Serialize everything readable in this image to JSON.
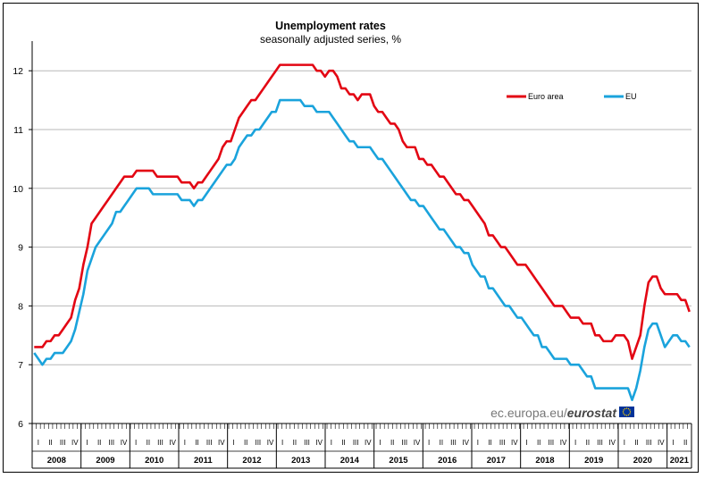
{
  "chart_data": {
    "type": "line",
    "title": "Unemployment rates",
    "subtitle": "seasonally adjusted series, %",
    "ylim": [
      6,
      12.5
    ],
    "yticks": [
      6,
      7,
      8,
      9,
      10,
      11,
      12
    ],
    "grid": true,
    "legend_position": "top-right",
    "quarter_labels": [
      "I",
      "II",
      "III",
      "IV"
    ],
    "years": [
      "2008",
      "2009",
      "2010",
      "2011",
      "2012",
      "2013",
      "2014",
      "2015",
      "2016",
      "2017",
      "2018",
      "2019",
      "2020",
      "2021"
    ],
    "x_start": "2008-01",
    "x_end": "2021-06",
    "series": [
      {
        "name": "Euro area",
        "color": "#e30613",
        "values": [
          7.3,
          7.3,
          7.3,
          7.4,
          7.4,
          7.5,
          7.5,
          7.6,
          7.7,
          7.8,
          8.1,
          8.3,
          8.7,
          9.0,
          9.4,
          9.5,
          9.6,
          9.7,
          9.8,
          9.9,
          10.0,
          10.1,
          10.2,
          10.2,
          10.2,
          10.3,
          10.3,
          10.3,
          10.3,
          10.3,
          10.2,
          10.2,
          10.2,
          10.2,
          10.2,
          10.2,
          10.1,
          10.1,
          10.1,
          10.0,
          10.1,
          10.1,
          10.2,
          10.3,
          10.4,
          10.5,
          10.7,
          10.8,
          10.8,
          11.0,
          11.2,
          11.3,
          11.4,
          11.5,
          11.5,
          11.6,
          11.7,
          11.8,
          11.9,
          12.0,
          12.1,
          12.1,
          12.1,
          12.1,
          12.1,
          12.1,
          12.1,
          12.1,
          12.1,
          12.0,
          12.0,
          11.9,
          12.0,
          12.0,
          11.9,
          11.7,
          11.7,
          11.6,
          11.6,
          11.5,
          11.6,
          11.6,
          11.6,
          11.4,
          11.3,
          11.3,
          11.2,
          11.1,
          11.1,
          11.0,
          10.8,
          10.7,
          10.7,
          10.7,
          10.5,
          10.5,
          10.4,
          10.4,
          10.3,
          10.2,
          10.2,
          10.1,
          10.0,
          9.9,
          9.9,
          9.8,
          9.8,
          9.7,
          9.6,
          9.5,
          9.4,
          9.2,
          9.2,
          9.1,
          9.0,
          9.0,
          8.9,
          8.8,
          8.7,
          8.7,
          8.7,
          8.6,
          8.5,
          8.4,
          8.3,
          8.2,
          8.1,
          8.0,
          8.0,
          8.0,
          7.9,
          7.8,
          7.8,
          7.8,
          7.7,
          7.7,
          7.7,
          7.5,
          7.5,
          7.4,
          7.4,
          7.4,
          7.5,
          7.5,
          7.5,
          7.4,
          7.1,
          7.3,
          7.5,
          8.0,
          8.4,
          8.5,
          8.5,
          8.3,
          8.2,
          8.2,
          8.2,
          8.2,
          8.1,
          8.1,
          7.9
        ]
      },
      {
        "name": "EU",
        "color": "#1aa3dc",
        "values": [
          7.2,
          7.1,
          7.0,
          7.1,
          7.1,
          7.2,
          7.2,
          7.2,
          7.3,
          7.4,
          7.6,
          7.9,
          8.2,
          8.6,
          8.8,
          9.0,
          9.1,
          9.2,
          9.3,
          9.4,
          9.6,
          9.6,
          9.7,
          9.8,
          9.9,
          10.0,
          10.0,
          10.0,
          10.0,
          9.9,
          9.9,
          9.9,
          9.9,
          9.9,
          9.9,
          9.9,
          9.8,
          9.8,
          9.8,
          9.7,
          9.8,
          9.8,
          9.9,
          10.0,
          10.1,
          10.2,
          10.3,
          10.4,
          10.4,
          10.5,
          10.7,
          10.8,
          10.9,
          10.9,
          11.0,
          11.0,
          11.1,
          11.2,
          11.3,
          11.3,
          11.5,
          11.5,
          11.5,
          11.5,
          11.5,
          11.5,
          11.4,
          11.4,
          11.4,
          11.3,
          11.3,
          11.3,
          11.3,
          11.2,
          11.1,
          11.0,
          10.9,
          10.8,
          10.8,
          10.7,
          10.7,
          10.7,
          10.7,
          10.6,
          10.5,
          10.5,
          10.4,
          10.3,
          10.2,
          10.1,
          10.0,
          9.9,
          9.8,
          9.8,
          9.7,
          9.7,
          9.6,
          9.5,
          9.4,
          9.3,
          9.3,
          9.2,
          9.1,
          9.0,
          9.0,
          8.9,
          8.9,
          8.7,
          8.6,
          8.5,
          8.5,
          8.3,
          8.3,
          8.2,
          8.1,
          8.0,
          8.0,
          7.9,
          7.8,
          7.8,
          7.7,
          7.6,
          7.5,
          7.5,
          7.3,
          7.3,
          7.2,
          7.1,
          7.1,
          7.1,
          7.1,
          7.0,
          7.0,
          7.0,
          6.9,
          6.8,
          6.8,
          6.6,
          6.6,
          6.6,
          6.6,
          6.6,
          6.6,
          6.6,
          6.6,
          6.6,
          6.4,
          6.6,
          6.9,
          7.3,
          7.6,
          7.7,
          7.7,
          7.5,
          7.3,
          7.4,
          7.5,
          7.5,
          7.4,
          7.4,
          7.3
        ]
      }
    ]
  },
  "watermark": {
    "site": "ec.europa.eu/",
    "brand": "eurostat",
    "flag_color": "#003399",
    "star_color": "#ffcc00"
  }
}
